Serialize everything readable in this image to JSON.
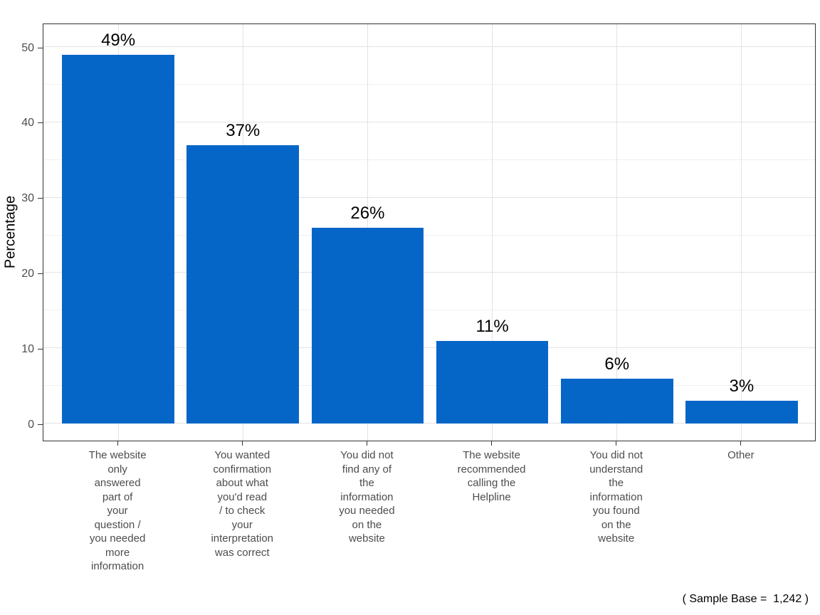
{
  "chart_data": {
    "type": "bar",
    "title": "",
    "xlabel": "",
    "ylabel": "Percentage",
    "categories": [
      "The website\nonly\nanswered\npart of\nyour\nquestion /\nyou needed\nmore\ninformation",
      "You wanted\nconfirmation\nabout what\nyou'd read\n/ to check\nyour\ninterpretation\nwas correct",
      "You did not\nfind any of\nthe\ninformation\nyou needed\non the\nwebsite",
      "The website\nrecommended\ncalling the\nHelpline",
      "You did not\nunderstand\nthe\ninformation\nyou found\non the\nwebsite",
      "Other"
    ],
    "values": [
      49,
      37,
      26,
      11,
      6,
      3
    ],
    "bar_labels": [
      "49%",
      "37%",
      "26%",
      "11%",
      "6%",
      "3%"
    ],
    "yticks": [
      0,
      10,
      20,
      30,
      40,
      50
    ],
    "yticks_minor": [
      5,
      15,
      25,
      35,
      45
    ],
    "ylim": [
      -2.3,
      53.2
    ],
    "grid": "on",
    "legend": "none",
    "caption": "( Sample Base =  1,242 )",
    "colors": {
      "bar": "#0666C8",
      "axis_text": "#4D4D4D",
      "grid_major": "#E3E3E3",
      "grid_minor": "#F0F0F0",
      "panel_border": "#333333",
      "tick": "#333333",
      "value_label": "#000000"
    }
  }
}
